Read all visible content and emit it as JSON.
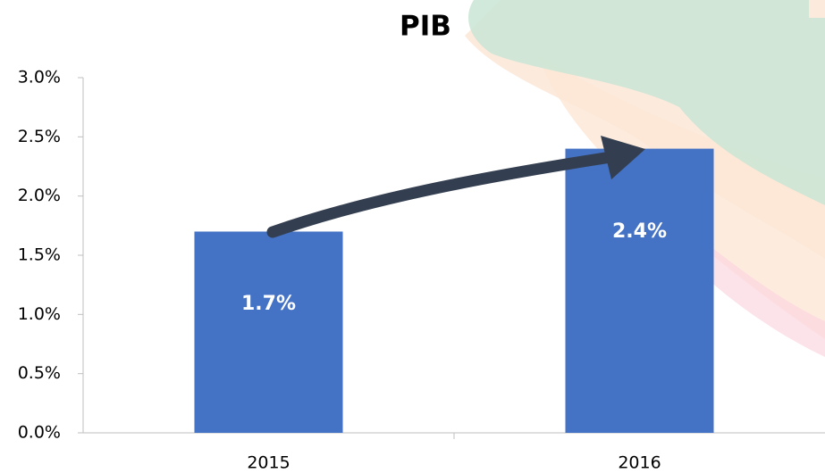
{
  "chart_data": {
    "type": "bar",
    "title": "PIB",
    "categories": [
      "2015",
      "2016"
    ],
    "values": [
      1.7,
      2.4
    ],
    "value_labels": [
      "1.7%",
      "2.4%"
    ],
    "color": "#4472c4",
    "ylim": [
      0,
      3
    ],
    "yticks": [
      {
        "value": 0,
        "label": "0.0%"
      },
      {
        "value": 0.5,
        "label": "0.5%"
      },
      {
        "value": 1,
        "label": "1.0%"
      },
      {
        "value": 1.5,
        "label": "1.5%"
      },
      {
        "value": 2,
        "label": "2.0%"
      },
      {
        "value": 2.5,
        "label": "2.5%"
      },
      {
        "value": 3,
        "label": "3.0%"
      }
    ],
    "grid": false
  }
}
